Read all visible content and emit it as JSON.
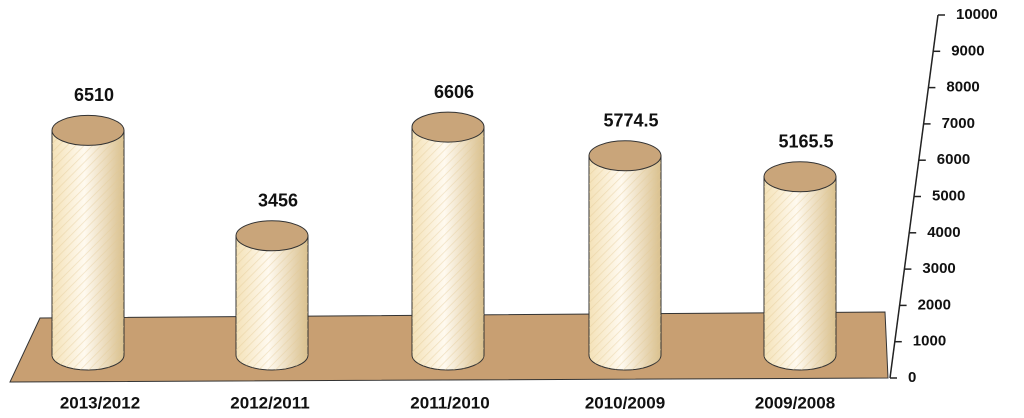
{
  "chart_data": {
    "type": "bar",
    "categories": [
      "2013/2012",
      "2012/2011",
      "2011/2010",
      "2010/2009",
      "2009/2008"
    ],
    "values": [
      6510,
      3456,
      6606,
      5774.5,
      5165.5
    ],
    "color": "#f7e6bf",
    "ylim": [
      0,
      10000
    ],
    "yticks": [
      0,
      1000,
      2000,
      3000,
      4000,
      5000,
      6000,
      7000,
      8000,
      9000,
      10000
    ]
  }
}
